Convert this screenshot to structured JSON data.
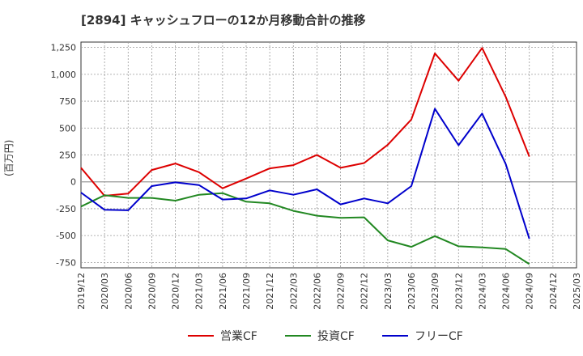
{
  "chart_data": {
    "type": "line",
    "title": "[2894]  キャッシュフローの12か月移動合計の推移",
    "ylabel": "(百万円)",
    "xlabel": "",
    "ylim": [
      -800,
      1300
    ],
    "yticks": [
      1250,
      1000,
      750,
      500,
      250,
      0,
      -250,
      -500,
      -750
    ],
    "ytick_labels": [
      "1,250",
      "1,000",
      "750",
      "500",
      "250",
      "0",
      "-250",
      "-500",
      "-750"
    ],
    "categories": [
      "2019/12",
      "2020/03",
      "2020/06",
      "2020/09",
      "2020/12",
      "2021/03",
      "2021/06",
      "2021/09",
      "2021/12",
      "2022/03",
      "2022/06",
      "2022/09",
      "2022/12",
      "2023/03",
      "2023/06",
      "2023/09",
      "2023/12",
      "2024/03",
      "2024/06",
      "2024/09",
      "2024/12",
      "2025/03"
    ],
    "grid": true,
    "legend_position": "bottom",
    "series": [
      {
        "name": "営業CF",
        "color": "#dd0000",
        "values": [
          130,
          -130,
          -110,
          110,
          170,
          90,
          -60,
          30,
          125,
          155,
          250,
          130,
          175,
          345,
          580,
          1195,
          940,
          1245,
          790,
          235,
          null,
          null
        ]
      },
      {
        "name": "投資CF",
        "color": "#228822",
        "values": [
          -230,
          -125,
          -150,
          -150,
          -175,
          -120,
          -105,
          -185,
          -200,
          -270,
          -315,
          -335,
          -330,
          -545,
          -605,
          -505,
          -600,
          -610,
          -625,
          -765,
          null,
          null
        ]
      },
      {
        "name": "フリーCF",
        "color": "#0000cc",
        "values": [
          -100,
          -260,
          -265,
          -40,
          -5,
          -30,
          -165,
          -155,
          -80,
          -120,
          -70,
          -210,
          -155,
          -200,
          -40,
          680,
          340,
          635,
          165,
          -530,
          null,
          null
        ]
      }
    ]
  }
}
